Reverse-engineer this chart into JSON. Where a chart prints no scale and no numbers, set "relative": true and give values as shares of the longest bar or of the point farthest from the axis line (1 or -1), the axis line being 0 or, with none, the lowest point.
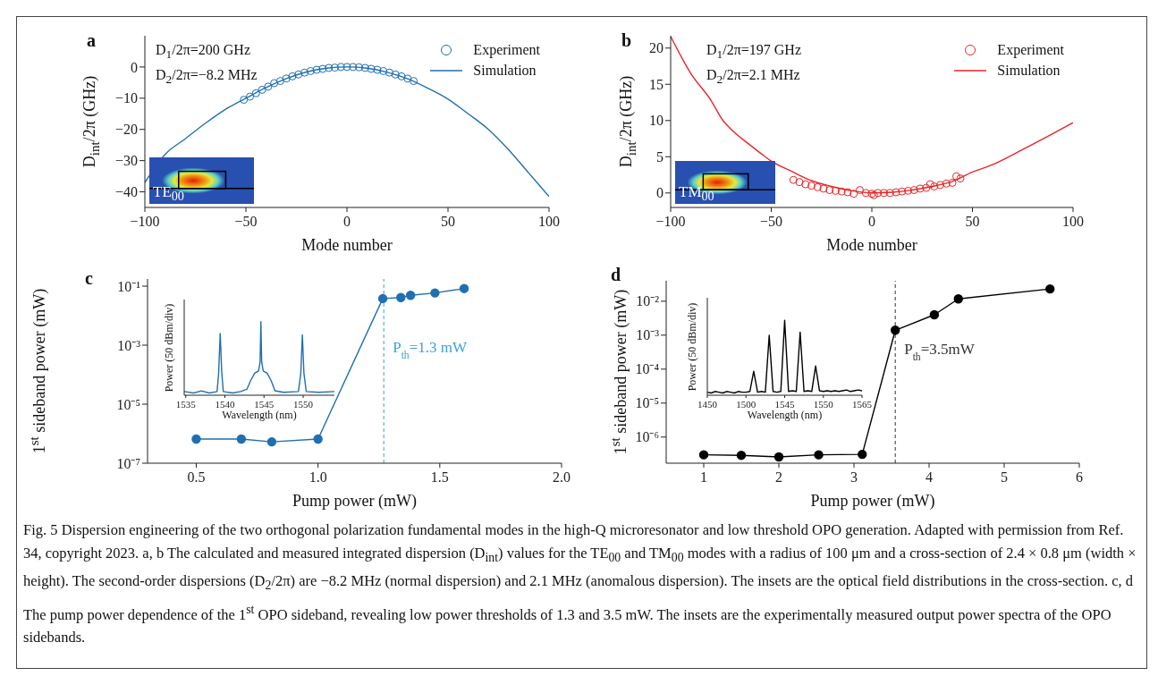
{
  "chart_data": [
    {
      "type": "line",
      "title": "a",
      "xlabel": "Mode number",
      "ylabel": "D$_{int}$/2π (GHz)",
      "xlim": [
        -100,
        100
      ],
      "xticks": [
        {
          "value": -100,
          "label": "−100"
        },
        {
          "value": -50,
          "label": "−50"
        },
        0,
        50,
        100
      ],
      "ylim": [
        -45,
        10
      ],
      "yticks": [
        {
          "value": -40,
          "label": "−40"
        },
        {
          "value": -30,
          "label": "−30"
        },
        {
          "value": -20,
          "label": "−20"
        },
        {
          "value": -10,
          "label": "−10"
        },
        0
      ],
      "legend": "top right",
      "annotations": [
        "D$_{1}$/2π=200 GHz",
        "D$_{2}$/2π=−8.2 MHz",
        "TE$_{00}$"
      ],
      "series": [
        {
          "name": "Experiment",
          "type": "scatter",
          "marker": "circle",
          "color": "#1f6fb2",
          "x": [
            -51,
            -48,
            -45,
            -42,
            -39,
            -36,
            -33,
            -30,
            -27,
            -24,
            -21,
            -18,
            -15,
            -12,
            -9,
            -6,
            -3,
            0,
            3,
            6,
            9,
            12,
            15,
            18,
            21,
            24,
            27,
            30,
            33
          ],
          "values": [
            -10.5,
            -9.5,
            -8.4,
            -7.3,
            -6.3,
            -5.2,
            -4.5,
            -3.7,
            -3.0,
            -2.4,
            -1.8,
            -1.3,
            -0.9,
            -0.6,
            -0.3,
            -0.2,
            0,
            0,
            0,
            -0.1,
            -0.3,
            -0.6,
            -0.9,
            -1.3,
            -1.8,
            -2.4,
            -3.0,
            -3.7,
            -4.5
          ]
        },
        {
          "name": "Simulation",
          "type": "line",
          "color": "#1f6fb2",
          "x": [
            -100,
            -90,
            -80,
            -70,
            -60,
            -50,
            -40,
            -30,
            -20,
            -10,
            0,
            10,
            20,
            30,
            40,
            50,
            60,
            70,
            80,
            90,
            100
          ],
          "values": [
            -37,
            -28,
            -23,
            -18,
            -13.5,
            -10,
            -6.6,
            -3.7,
            -1.6,
            -0.4,
            0,
            -0.4,
            -1.7,
            -3.8,
            -6.8,
            -10.3,
            -15,
            -20,
            -26.5,
            -34,
            -41.5
          ]
        }
      ]
    },
    {
      "type": "line",
      "title": "b",
      "xlabel": "Mode number",
      "ylabel": "D$_{int}$/2π (GHz)",
      "xlim": [
        -100,
        100
      ],
      "xticks": [
        {
          "value": -100,
          "label": "−100"
        },
        {
          "value": -50,
          "label": "−50"
        },
        0,
        50,
        100
      ],
      "ylim": [
        -2,
        21.7
      ],
      "yticks": [
        0,
        5,
        10,
        15,
        20
      ],
      "legend": "top right",
      "annotations": [
        "D$_{1}$/2π=197 GHz",
        "D$_{2}$/2π=2.1 MHz",
        "TM$_{00}$"
      ],
      "series": [
        {
          "name": "Experiment",
          "type": "scatter",
          "marker": "circle",
          "color": "#e8262a",
          "x": [
            -39,
            -36,
            -33,
            -30,
            -27,
            -24,
            -21,
            -18,
            -15,
            -12,
            -9,
            -6,
            -3,
            0,
            1,
            3,
            6,
            9,
            12,
            15,
            18,
            21,
            24,
            27,
            29,
            31,
            34,
            37,
            40,
            42,
            44
          ],
          "values": [
            1.8,
            1.5,
            1.2,
            1.0,
            0.8,
            0.6,
            0.4,
            0.3,
            0.2,
            0.1,
            -0.1,
            0.4,
            0,
            -0.1,
            -0.3,
            0,
            0,
            0,
            0.1,
            0.2,
            0.3,
            0.4,
            0.6,
            0.7,
            1.2,
            0.9,
            1.1,
            1.3,
            1.4,
            2.3,
            2.0
          ]
        },
        {
          "name": "Simulation",
          "type": "line",
          "color": "#e8262a",
          "x": [
            -100,
            -90,
            -80,
            -74,
            -70,
            -60,
            -53,
            -50,
            -40,
            -30,
            -20,
            -10,
            0,
            10,
            20,
            30,
            40,
            50,
            60,
            75,
            90,
            100
          ],
          "values": [
            21.6,
            16.5,
            12.8,
            10,
            8.8,
            6.5,
            5,
            4.4,
            3.0,
            1.7,
            0.9,
            0.3,
            0,
            0.1,
            0.4,
            0.9,
            1.6,
            2.9,
            3.9,
            6.0,
            8.2,
            9.7
          ]
        }
      ]
    },
    {
      "type": "line",
      "title": "c",
      "xlabel": "Pump power (mW)",
      "ylabel": "1$^{st}$ sideband power (mW)",
      "log": "y",
      "marker": "circle",
      "color": "#1f6fb2",
      "xlim": [
        0.3,
        2
      ],
      "xticks": [
        0.5,
        {
          "value": 1,
          "label": "1.0"
        },
        1.5,
        {
          "value": 2,
          "label": "2.0"
        }
      ],
      "ylim": [
        1e-07,
        0.175
      ],
      "yticks": [
        {
          "value": 1e-07,
          "label": "10⁻⁷"
        },
        {
          "value": 1e-05,
          "label": "10⁻⁵"
        },
        {
          "value": 0.001,
          "label": "10⁻³"
        },
        {
          "value": 0.1,
          "label": "10⁻¹"
        }
      ],
      "ref_lines": [
        {
          "axis": "x",
          "value": 1.27,
          "label": "P$_{th}$=1.3 mW",
          "color": "#3aa0dc",
          "line_style": "dashed"
        }
      ],
      "x": [
        0.5,
        0.685,
        0.81,
        1.0,
        1.266,
        1.34,
        1.38,
        1.48,
        1.6
      ],
      "values": [
        6.6e-07,
        6.6e-07,
        5.3e-07,
        6.6e-07,
        0.038,
        0.041,
        0.049,
        0.059,
        0.083
      ]
    },
    {
      "type": "line",
      "relative": true,
      "xlabel": "Wavelength (nm)",
      "ylabel": "Power (50 dBm/div)",
      "color": "#1f6fb2",
      "xlim": [
        1534.8,
        1554
      ],
      "xticks": [
        1535,
        1540,
        1545,
        1550
      ],
      "x": [
        1534.8,
        1536,
        1537,
        1538,
        1539,
        1539.2,
        1539.4,
        1539.6,
        1539.8,
        1541,
        1542,
        1542.8,
        1543.3,
        1543.8,
        1544.3,
        1544.5,
        1544.6,
        1544.7,
        1544.9,
        1545.4,
        1545.9,
        1546.4,
        1547.5,
        1549.4,
        1549.7,
        1549.9,
        1550.1,
        1550.4,
        1552,
        1554
      ],
      "values": [
        0.05,
        0.03,
        0.06,
        0.03,
        0.05,
        0.3,
        0.84,
        0.3,
        0.05,
        0.03,
        0.05,
        0.08,
        0.2,
        0.3,
        0.33,
        0.45,
        1,
        0.45,
        0.33,
        0.3,
        0.2,
        0.06,
        0.04,
        0.05,
        0.3,
        0.82,
        0.3,
        0.05,
        0.04,
        0.05
      ]
    },
    {
      "type": "line",
      "title": "d",
      "xlabel": "Pump power (mW)",
      "ylabel": "1$^{st}$ sideband power (mW)",
      "log": "y",
      "marker": "circle",
      "color": "#000000",
      "xlim": [
        0.5,
        6
      ],
      "xticks": [
        1,
        2,
        3,
        4,
        5,
        6
      ],
      "ylim": [
        1.7e-07,
        0.04
      ],
      "yticks": [
        {
          "value": 1e-06,
          "label": "10⁻⁶"
        },
        {
          "value": 1e-05,
          "label": "10⁻⁵"
        },
        {
          "value": 0.0001,
          "label": "10⁻⁴"
        },
        {
          "value": 0.001,
          "label": "10⁻³"
        },
        {
          "value": 0.01,
          "label": "10⁻²"
        }
      ],
      "ref_lines": [
        {
          "axis": "x",
          "value": 3.55,
          "label": "P$_{th}$=3.5mW",
          "color": "#333333",
          "line_style": "dashed"
        }
      ],
      "annotations": [
        "Fig. 5 Dispersion engineering of the two orthogonal polarization fundamental modes in the high-Q microresonator and low threshold OPO generation. Adapted with permission from Ref. 34, copyright 2023. a, b The calculated and measured integrated dispersion (D$_{int}$) values for the TE$_{00}$ and TM$_{00}$ modes with a radius of 100 μm and a cross-section of 2.4 × 0.8 μm (width × height). The second-order dispersions (D$_{2}$/2π) are −8.2 MHz (normal dispersion) and 2.1 MHz (anomalous dispersion). The insets are the optical field distributions in the cross-section. c, d The pump power dependence of the 1$^{st}$ OPO sideband, revealing low power thresholds of 1.3 and 3.5 mW. The insets are the experimentally measured output power spectra of the OPO sidebands."
      ],
      "x": [
        1,
        1.5,
        2,
        2.53,
        3.11,
        3.55,
        4.07,
        4.39,
        5.61
      ],
      "values": [
        3e-07,
        2.9e-07,
        2.6e-07,
        3e-07,
        3.1e-07,
        0.0014,
        0.004,
        0.0117,
        0.023
      ]
    },
    {
      "type": "line",
      "relative": true,
      "xlabel": "Wavelength (nm)",
      "ylabel": "Power (50 dBm/div)",
      "color": "#000000",
      "categories": [
        "1450",
        null,
        null,
        null,
        null,
        null,
        null,
        null,
        null,
        null,
        "1500",
        null,
        null,
        null,
        null,
        null,
        null,
        null,
        null,
        null,
        "1545",
        null,
        null,
        null,
        null,
        null,
        null,
        null,
        null,
        null,
        "1550",
        null,
        null,
        null,
        null,
        null,
        null,
        null,
        null,
        null,
        "1565"
      ],
      "values": [
        0.04,
        0.03,
        0.05,
        0.04,
        0.03,
        0.05,
        0.04,
        0.03,
        0.05,
        0.04,
        0.04,
        0.05,
        0.32,
        0.04,
        0.05,
        0.04,
        0.8,
        0.05,
        0.04,
        0.05,
        1,
        0.05,
        0.06,
        0.05,
        0.84,
        0.05,
        0.06,
        0.05,
        0.39,
        0.06,
        0.05,
        0.06,
        0.05,
        0.06,
        0.05,
        0.06,
        0.07,
        0.05,
        0.06,
        0.07,
        0.06
      ]
    }
  ]
}
